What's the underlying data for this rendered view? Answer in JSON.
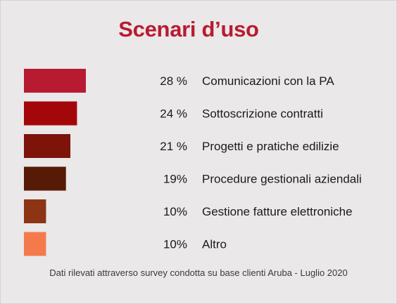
{
  "chart_data": {
    "type": "bar",
    "orientation": "horizontal",
    "title": "Scenari d’uso",
    "categories": [
      "Comunicazioni con la PA",
      "Sottoscrizione contratti",
      "Progetti e pratiche edilizie",
      "Procedure gestionali aziendali",
      "Gestione fatture elettroniche",
      "Altro"
    ],
    "values": [
      28,
      24,
      21,
      19,
      10,
      10
    ],
    "value_labels": [
      "28 %",
      "24 %",
      "21 %",
      "19%",
      "10%",
      "10%"
    ],
    "bar_colors": [
      "#b81b31",
      "#a3070a",
      "#7d1309",
      "#561a06",
      "#8c3414",
      "#f47a4c"
    ],
    "source_note": "Dati rilevati attraverso survey condotta  su base clienti  Aruba - Luglio 2020"
  },
  "colors": {
    "title": "#b81b31",
    "background": "#eae8e8",
    "text": "#1a1a1a"
  }
}
